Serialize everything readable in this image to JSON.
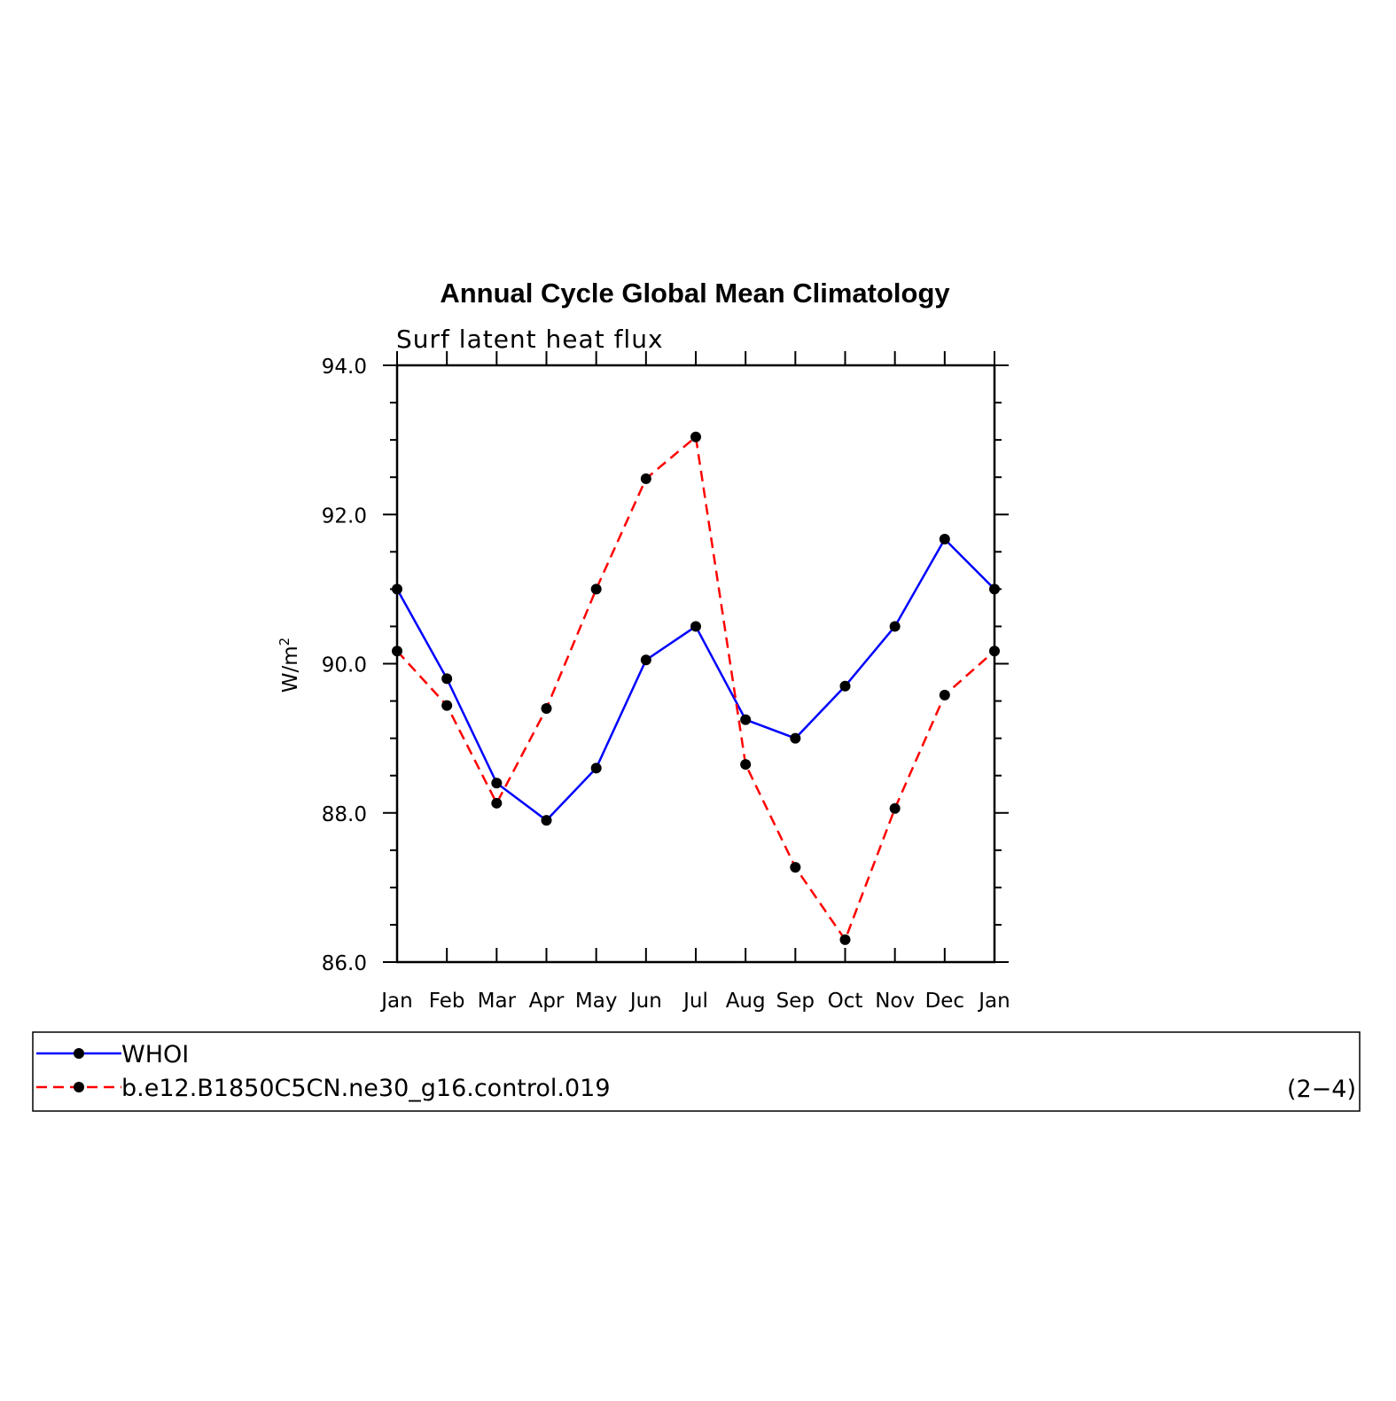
{
  "chart_data": {
    "type": "line",
    "title": "Annual Cycle Global Mean Climatology",
    "subtitle": "Surf latent heat flux",
    "xlabel": "",
    "ylabel_base": "W/m",
    "ylabel_sup": "2",
    "ylim": [
      86.0,
      94.0
    ],
    "y_ticks": [
      "86.0",
      "88.0",
      "90.0",
      "92.0",
      "94.0"
    ],
    "y_tick_values": [
      86.0,
      88.0,
      90.0,
      92.0,
      94.0
    ],
    "categories": [
      "Jan",
      "Feb",
      "Mar",
      "Apr",
      "May",
      "Jun",
      "Jul",
      "Aug",
      "Sep",
      "Oct",
      "Nov",
      "Dec",
      "Jan"
    ],
    "series": [
      {
        "name": "WHOI",
        "color": "#0000ff",
        "dashed": false,
        "values": [
          91.0,
          89.8,
          88.4,
          87.9,
          88.6,
          90.05,
          90.5,
          89.25,
          89.0,
          89.7,
          90.5,
          91.67,
          91.0
        ]
      },
      {
        "name": "b.e12.B1850C5CN.ne30_g16.control.019",
        "color": "#ff0000",
        "dashed": true,
        "values": [
          90.17,
          89.44,
          88.13,
          89.4,
          91.0,
          92.48,
          93.04,
          88.65,
          87.27,
          86.3,
          88.06,
          89.58,
          90.17
        ]
      }
    ],
    "legend_position": "bottom",
    "legend_note": "(2−4)",
    "grid": false
  }
}
